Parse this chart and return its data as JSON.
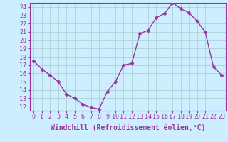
{
  "x": [
    0,
    1,
    2,
    3,
    4,
    5,
    6,
    7,
    8,
    9,
    10,
    11,
    12,
    13,
    14,
    15,
    16,
    17,
    18,
    19,
    20,
    21,
    22,
    23
  ],
  "y": [
    17.5,
    16.5,
    15.8,
    15.0,
    13.5,
    13.0,
    12.3,
    11.9,
    11.7,
    13.8,
    15.0,
    17.0,
    17.2,
    20.8,
    21.2,
    22.7,
    23.2,
    24.5,
    23.8,
    23.3,
    22.3,
    21.0,
    16.8,
    15.8
  ],
  "ylim": [
    11.5,
    24.5
  ],
  "xlim": [
    -0.5,
    23.5
  ],
  "yticks": [
    12,
    13,
    14,
    15,
    16,
    17,
    18,
    19,
    20,
    21,
    22,
    23,
    24
  ],
  "xticks": [
    0,
    1,
    2,
    3,
    4,
    5,
    6,
    7,
    8,
    9,
    10,
    11,
    12,
    13,
    14,
    15,
    16,
    17,
    18,
    19,
    20,
    21,
    22,
    23
  ],
  "xlabel": "Windchill (Refroidissement éolien,°C)",
  "line_color": "#993399",
  "marker": "D",
  "marker_size": 2.5,
  "bg_color": "#cceeff",
  "grid_color": "#aacccc",
  "tick_label_fontsize": 6,
  "xlabel_fontsize": 7,
  "spine_color": "#993399",
  "line_width": 1.0
}
